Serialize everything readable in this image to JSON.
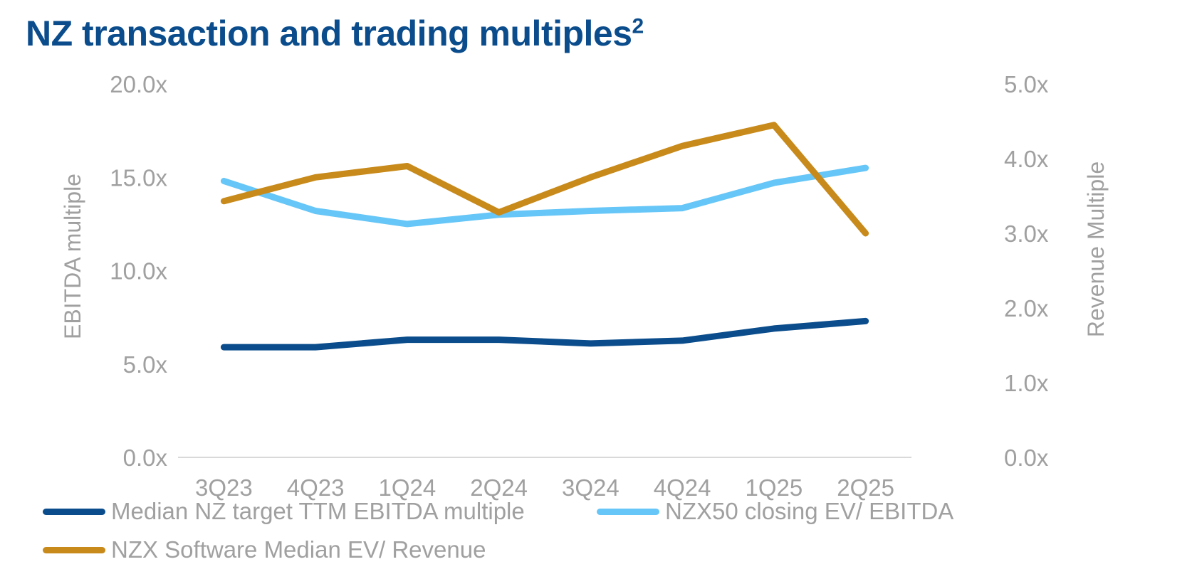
{
  "title": "NZ transaction and trading multiples",
  "title_superscript": "2",
  "colors": {
    "median_nz": "#0b4d8c",
    "nzx50": "#66c6f7",
    "software": "#c88a1a",
    "axis": "#d9d9d9",
    "text": "#a0a0a0"
  },
  "chart_data": {
    "type": "line",
    "x": [
      "3Q23",
      "4Q23",
      "1Q24",
      "2Q24",
      "3Q24",
      "4Q24",
      "1Q25",
      "2Q25"
    ],
    "y_left": {
      "label": "EBITDA multiple",
      "range": [
        0,
        20
      ],
      "ticks": [
        0,
        5,
        10,
        15,
        20
      ],
      "tick_labels": [
        "0.0x",
        "5.0x",
        "10.0x",
        "15.0x",
        "20.0x"
      ]
    },
    "y_right": {
      "label": "Revenue Multiple",
      "range": [
        0,
        5
      ],
      "ticks": [
        0,
        1,
        2,
        3,
        4,
        5
      ],
      "tick_labels": [
        "0.0x",
        "1.0x",
        "2.0x",
        "3.0x",
        "4.0x",
        "5.0x"
      ]
    },
    "series": [
      {
        "name": "Median NZ target TTM EBITDA multiple",
        "axis": "left",
        "color": "#0b4d8c",
        "values": [
          5.9,
          5.9,
          6.3,
          6.3,
          6.1,
          6.25,
          6.9,
          7.3
        ]
      },
      {
        "name": "NZX50 closing EV/ EBITDA",
        "axis": "left",
        "color": "#66c6f7",
        "values": [
          14.8,
          13.2,
          12.5,
          13.0,
          13.2,
          13.35,
          14.7,
          15.5
        ]
      },
      {
        "name": "NZX Software Median EV/ Revenue",
        "axis": "right",
        "color": "#c88a1a",
        "values": [
          3.43,
          3.75,
          3.9,
          3.28,
          3.75,
          4.17,
          4.45,
          3.0
        ]
      }
    ],
    "grid": false,
    "legend_position": "bottom"
  }
}
